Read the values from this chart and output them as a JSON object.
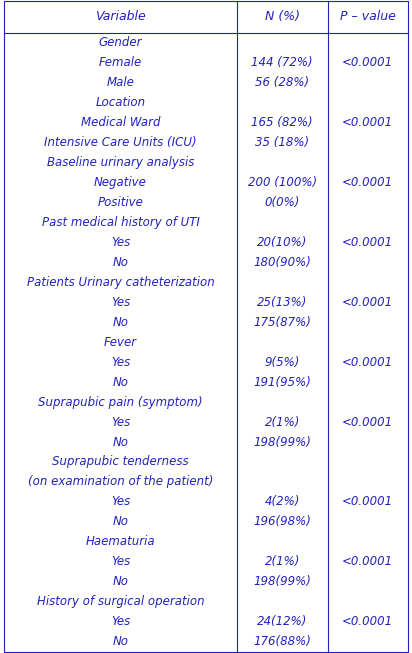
{
  "title_row": [
    "Variable",
    "N (%)",
    "P – value"
  ],
  "rows": [
    {
      "var": "Gender",
      "n": "",
      "p": ""
    },
    {
      "var": "Female",
      "n": "144 (72%)",
      "p": "<0.0001"
    },
    {
      "var": "Male",
      "n": "56 (28%)",
      "p": ""
    },
    {
      "var": "Location",
      "n": "",
      "p": ""
    },
    {
      "var": "Medical Ward",
      "n": "165 (82%)",
      "p": "<0.0001"
    },
    {
      "var": "Intensive Care Units (ICU)",
      "n": "35 (18%)",
      "p": ""
    },
    {
      "var": "Baseline urinary analysis",
      "n": "",
      "p": ""
    },
    {
      "var": "Negative",
      "n": "200 (100%)",
      "p": "<0.0001"
    },
    {
      "var": "Positive",
      "n": "0(0%)",
      "p": ""
    },
    {
      "var": "Past medical history of UTI",
      "n": "",
      "p": ""
    },
    {
      "var": "Yes",
      "n": "20(10%)",
      "p": "<0.0001"
    },
    {
      "var": "No",
      "n": "180(90%)",
      "p": ""
    },
    {
      "var": "Patients Urinary catheterization",
      "n": "",
      "p": ""
    },
    {
      "var": "Yes",
      "n": "25(13%)",
      "p": "<0.0001"
    },
    {
      "var": "No",
      "n": "175(87%)",
      "p": ""
    },
    {
      "var": "Fever",
      "n": "",
      "p": ""
    },
    {
      "var": "Yes",
      "n": "9(5%)",
      "p": "<0.0001"
    },
    {
      "var": "No",
      "n": "191(95%)",
      "p": ""
    },
    {
      "var": "Suprapubic pain (symptom)",
      "n": "",
      "p": ""
    },
    {
      "var": "Yes",
      "n": "2(1%)",
      "p": "<0.0001"
    },
    {
      "var": "No",
      "n": "198(99%)",
      "p": ""
    },
    {
      "var": "Suprapubic tenderness",
      "n": "",
      "p": ""
    },
    {
      "var": "(on examination of the patient)",
      "n": "",
      "p": ""
    },
    {
      "var": "Yes",
      "n": "4(2%)",
      "p": "<0.0001"
    },
    {
      "var": "No",
      "n": "196(98%)",
      "p": ""
    },
    {
      "var": "Haematuria",
      "n": "",
      "p": ""
    },
    {
      "var": "Yes",
      "n": "2(1%)",
      "p": "<0.0001"
    },
    {
      "var": "No",
      "n": "198(99%)",
      "p": ""
    },
    {
      "var": "History of surgical operation",
      "n": "",
      "p": ""
    },
    {
      "var": "Yes",
      "n": "24(12%)",
      "p": "<0.0001"
    },
    {
      "var": "No",
      "n": "176(88%)",
      "p": ""
    }
  ],
  "text_color": "#2222bb",
  "header_color": "#2222bb",
  "border_color": "#2222bb",
  "bg_color": "#ffffff",
  "font_size": 8.5,
  "header_font_size": 9.0,
  "fig_width": 4.12,
  "fig_height": 6.53,
  "dpi": 100
}
